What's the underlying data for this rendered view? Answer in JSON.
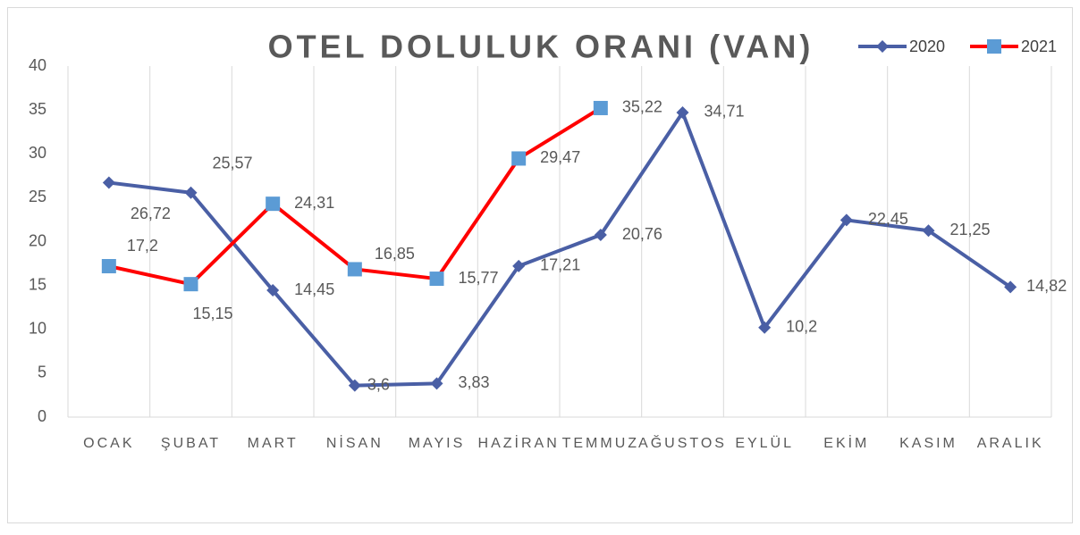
{
  "chart_data": {
    "type": "line",
    "title": "OTEL DOLULUK ORANI (VAN)",
    "categories": [
      "OCAK",
      "ŞUBAT",
      "MART",
      "NİSAN",
      "MAYIS",
      "HAZİRAN",
      "TEMMUZ",
      "AĞUSTOS",
      "EYLÜL",
      "EKİM",
      "KASIM",
      "ARALIK"
    ],
    "series": [
      {
        "name": "2020",
        "color": "#4a5fa5",
        "marker": "diamond",
        "marker_color": "#4a5fa5",
        "values": [
          26.72,
          25.57,
          14.45,
          3.6,
          3.83,
          17.21,
          20.76,
          34.71,
          10.2,
          22.45,
          21.25,
          14.82
        ],
        "value_labels": [
          "26,72",
          "25,57",
          "14,45",
          "3,6",
          "3,83",
          "17,21",
          "20,76",
          "34,71",
          "10,2",
          "22,45",
          "21,25",
          "14,82"
        ]
      },
      {
        "name": "2021",
        "color": "#ff0000",
        "marker": "square",
        "marker_color": "#5b9bd5",
        "values": [
          17.2,
          15.15,
          24.31,
          16.85,
          15.77,
          29.47,
          35.22,
          null,
          null,
          null,
          null,
          null
        ],
        "value_labels": [
          "17,2",
          "15,15",
          "24,31",
          "16,85",
          "15,77",
          "29,47",
          "35,22",
          null,
          null,
          null,
          null,
          null
        ]
      }
    ],
    "ylim": [
      0,
      40
    ],
    "yticks": [
      0,
      5,
      10,
      15,
      20,
      25,
      30,
      35,
      40
    ],
    "grid": true,
    "legend": "top-right"
  }
}
